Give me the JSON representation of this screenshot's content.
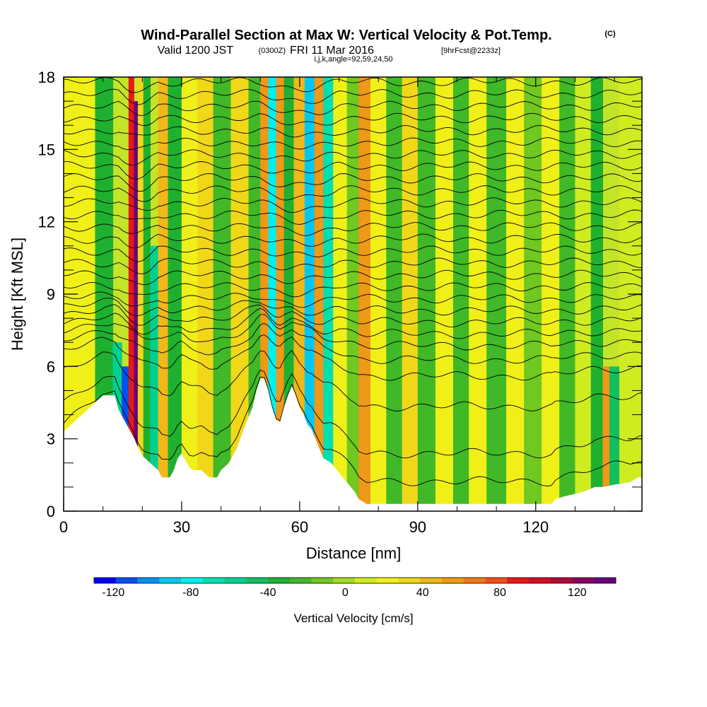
{
  "title": {
    "main": "Wind-Parallel Section at Max W: Vertical Velocity & Pot.Temp.",
    "copyright": "(C)",
    "valid_prefix": "Valid 1200 JST",
    "valid_utc": "(0300Z)",
    "valid_date": "FRI 11 Mar 2016",
    "forecast": "[9hrFcst@2233z]",
    "ijk": "i,j,k,angle=92,59,24,50"
  },
  "chart_data": {
    "type": "heatmap",
    "xlabel": "Distance [nm]",
    "ylabel": "Height [Kft MSL]",
    "xlim": [
      0,
      147
    ],
    "ylim": [
      0,
      18
    ],
    "x_ticks": [
      0,
      30,
      60,
      90,
      120
    ],
    "x_tick_labels": [
      "0",
      "30",
      "60",
      "90",
      "120"
    ],
    "y_ticks": [
      0,
      3,
      6,
      9,
      12,
      15,
      18
    ],
    "y_tick_labels": [
      "0",
      "3",
      "6",
      "9",
      "12",
      "15",
      "18"
    ],
    "colorbar": {
      "label": "Vertical Velocity [cm/s]",
      "range": [
        -130,
        140
      ],
      "tick_values": [
        -120,
        -80,
        -40,
        0,
        40,
        80,
        120
      ],
      "tick_labels": [
        "-120",
        "-80",
        "-40",
        "0",
        "40",
        "80",
        "120"
      ],
      "colors": [
        "#0000f0",
        "#0050f0",
        "#0090f0",
        "#00c8f0",
        "#00f0f0",
        "#00e0b0",
        "#00d090",
        "#10c060",
        "#20b030",
        "#40b828",
        "#70c820",
        "#a0dc20",
        "#d0ec20",
        "#f0f018",
        "#f0d818",
        "#f0b818",
        "#f09818",
        "#f07818",
        "#f05018",
        "#e81818",
        "#d01020",
        "#b00838",
        "#880060",
        "#6a0080"
      ]
    },
    "terrain_kft": [
      [
        0,
        3.3
      ],
      [
        2,
        3.6
      ],
      [
        4,
        3.9
      ],
      [
        6,
        4.2
      ],
      [
        8,
        4.5
      ],
      [
        10,
        4.8
      ],
      [
        13,
        4.8
      ],
      [
        14,
        4.2
      ],
      [
        15,
        3.9
      ],
      [
        16,
        3.6
      ],
      [
        17,
        3.3
      ],
      [
        18,
        3.0
      ],
      [
        19,
        2.6
      ],
      [
        20,
        2.3
      ],
      [
        22,
        2.0
      ],
      [
        24,
        1.7
      ],
      [
        25,
        1.4
      ],
      [
        27,
        1.4
      ],
      [
        28,
        1.7
      ],
      [
        29,
        2.2
      ],
      [
        30,
        2.4
      ],
      [
        31,
        2.1
      ],
      [
        32,
        1.8
      ],
      [
        33,
        1.7
      ],
      [
        35,
        1.7
      ],
      [
        37,
        1.4
      ],
      [
        39,
        1.4
      ],
      [
        40,
        1.7
      ],
      [
        42,
        2.0
      ],
      [
        44,
        2.6
      ],
      [
        46,
        3.5
      ],
      [
        48,
        4.3
      ],
      [
        49,
        5.0
      ],
      [
        50,
        5.5
      ],
      [
        51,
        5.5
      ],
      [
        52,
        5.0
      ],
      [
        53,
        4.3
      ],
      [
        54,
        3.8
      ],
      [
        55,
        3.7
      ],
      [
        56,
        4.3
      ],
      [
        57,
        4.8
      ],
      [
        58,
        5.2
      ],
      [
        59,
        4.8
      ],
      [
        60,
        4.3
      ],
      [
        61,
        4.0
      ],
      [
        62,
        3.6
      ],
      [
        63,
        3.4
      ],
      [
        64,
        3.0
      ],
      [
        65,
        2.6
      ],
      [
        66,
        2.2
      ],
      [
        68,
        2.0
      ],
      [
        70,
        1.6
      ],
      [
        72,
        1.2
      ],
      [
        74,
        0.8
      ],
      [
        75,
        0.5
      ],
      [
        77,
        0.3
      ],
      [
        100,
        0.3
      ],
      [
        124,
        0.3
      ],
      [
        125,
        0.5
      ],
      [
        127,
        0.6
      ],
      [
        132,
        0.8
      ],
      [
        135,
        1.0
      ],
      [
        137,
        1.0
      ],
      [
        140,
        1.1
      ],
      [
        144,
        1.2
      ],
      [
        146,
        1.4
      ],
      [
        147,
        1.4
      ]
    ],
    "vertical_velocity_bands": [
      {
        "x_nm": 5,
        "w_cms": 20,
        "top_kft": 18
      },
      {
        "x_nm": 11,
        "w_cms": -30,
        "top_kft": 18
      },
      {
        "x_nm": 14,
        "w_cms": -60,
        "top_kft": 7
      },
      {
        "x_nm": 15.5,
        "w_cms": -110,
        "top_kft": 6
      },
      {
        "x_nm": 17.5,
        "w_cms": 90,
        "top_kft": 18
      },
      {
        "x_nm": 18.2,
        "w_cms": 140,
        "top_kft": 17
      },
      {
        "x_nm": 19.5,
        "w_cms": 30,
        "top_kft": 18
      },
      {
        "x_nm": 21,
        "w_cms": -40,
        "top_kft": 18
      },
      {
        "x_nm": 23,
        "w_cms": -60,
        "top_kft": 11
      },
      {
        "x_nm": 25,
        "w_cms": 40,
        "top_kft": 18
      },
      {
        "x_nm": 28,
        "w_cms": -35,
        "top_kft": 18
      },
      {
        "x_nm": 32,
        "w_cms": 25,
        "top_kft": 18
      },
      {
        "x_nm": 36,
        "w_cms": 35,
        "top_kft": 18
      },
      {
        "x_nm": 40,
        "w_cms": -25,
        "top_kft": 18
      },
      {
        "x_nm": 45,
        "w_cms": 30,
        "top_kft": 18
      },
      {
        "x_nm": 49,
        "w_cms": -20,
        "top_kft": 18
      },
      {
        "x_nm": 51,
        "w_cms": 60,
        "top_kft": 18
      },
      {
        "x_nm": 53,
        "w_cms": -80,
        "top_kft": 18
      },
      {
        "x_nm": 55,
        "w_cms": 50,
        "top_kft": 18
      },
      {
        "x_nm": 57,
        "w_cms": -30,
        "top_kft": 18
      },
      {
        "x_nm": 60,
        "w_cms": 40,
        "top_kft": 18
      },
      {
        "x_nm": 62.5,
        "w_cms": -90,
        "top_kft": 18
      },
      {
        "x_nm": 65,
        "w_cms": 55,
        "top_kft": 18
      },
      {
        "x_nm": 67,
        "w_cms": -70,
        "top_kft": 18
      },
      {
        "x_nm": 70,
        "w_cms": 20,
        "top_kft": 18
      },
      {
        "x_nm": 74,
        "w_cms": -15,
        "top_kft": 18
      },
      {
        "x_nm": 76,
        "w_cms": 55,
        "top_kft": 18
      },
      {
        "x_nm": 80,
        "w_cms": 25,
        "top_kft": 18
      },
      {
        "x_nm": 84,
        "w_cms": -25,
        "top_kft": 18
      },
      {
        "x_nm": 88,
        "w_cms": 30,
        "top_kft": 18
      },
      {
        "x_nm": 92,
        "w_cms": -20,
        "top_kft": 18
      },
      {
        "x_nm": 97,
        "w_cms": 25,
        "top_kft": 18
      },
      {
        "x_nm": 101,
        "w_cms": -20,
        "top_kft": 18
      },
      {
        "x_nm": 105,
        "w_cms": 20,
        "top_kft": 18
      },
      {
        "x_nm": 110,
        "w_cms": -25,
        "top_kft": 18
      },
      {
        "x_nm": 115,
        "w_cms": 20,
        "top_kft": 18
      },
      {
        "x_nm": 119,
        "w_cms": -15,
        "top_kft": 18
      },
      {
        "x_nm": 124,
        "w_cms": 20,
        "top_kft": 18
      },
      {
        "x_nm": 128,
        "w_cms": -25,
        "top_kft": 18
      },
      {
        "x_nm": 132,
        "w_cms": 15,
        "top_kft": 18
      },
      {
        "x_nm": 136,
        "w_cms": -30,
        "top_kft": 18
      },
      {
        "x_nm": 138,
        "w_cms": 60,
        "top_kft": 6
      },
      {
        "x_nm": 139.5,
        "w_cms": -50,
        "top_kft": 6
      },
      {
        "x_nm": 143,
        "w_cms": 15,
        "top_kft": 18
      }
    ],
    "theta_contours_kft": [
      1.0,
      2.2,
      4.2,
      5.5,
      6.2,
      6.8,
      7.3,
      7.8,
      8.3,
      8.8,
      9.3,
      9.8,
      10.3,
      10.8,
      11.3,
      11.8,
      12.3,
      12.8,
      13.3,
      13.8,
      14.3,
      14.8,
      15.3,
      15.8,
      16.3,
      16.8,
      17.3,
      17.8
    ]
  }
}
